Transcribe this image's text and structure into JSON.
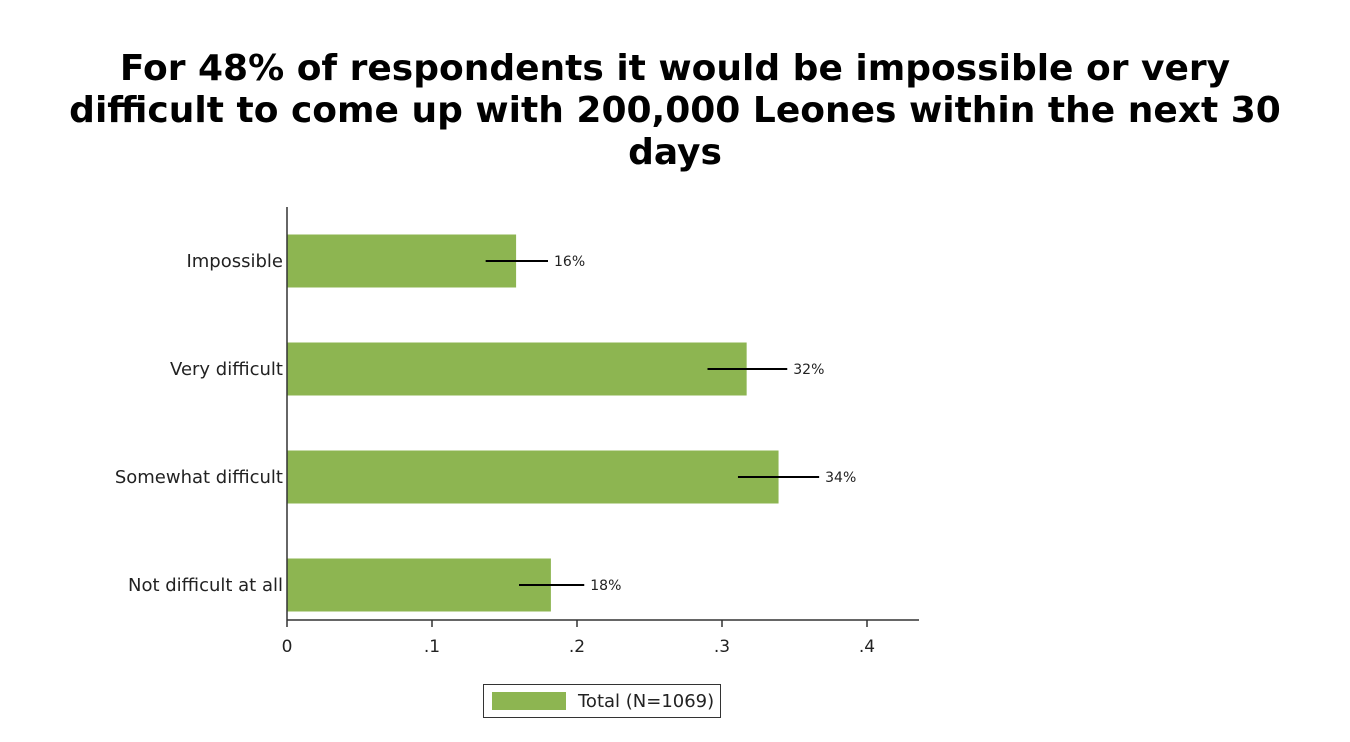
{
  "chart_data": {
    "type": "bar",
    "orientation": "horizontal",
    "title": "For 48% of respondents it would be impossible or very difficult to come up with 200,000 Leones within the next 30 days",
    "categories": [
      "Impossible",
      "Very difficult",
      "Somewhat difficult",
      "Not difficult at all"
    ],
    "series": [
      {
        "name": "Total (N=1069)",
        "values": [
          0.158,
          0.317,
          0.339,
          0.182
        ],
        "labels": [
          "16%",
          "32%",
          "34%",
          "18%"
        ],
        "ci_low": [
          0.137,
          0.29,
          0.311,
          0.16
        ],
        "ci_high": [
          0.18,
          0.345,
          0.367,
          0.205
        ],
        "color": "#8db551"
      }
    ],
    "xlim": [
      0,
      0.437
    ],
    "xticks": [
      0,
      0.1,
      0.2,
      0.3,
      0.4
    ],
    "xtick_labels": [
      "0",
      ".1",
      ".2",
      ".3",
      ".4"
    ],
    "xlabel": "",
    "ylabel": "",
    "grid": false,
    "legend_position": "bottom-center"
  },
  "colors": {
    "bar": "#8db551",
    "error_bar": "#000000",
    "axis": "#333333"
  }
}
